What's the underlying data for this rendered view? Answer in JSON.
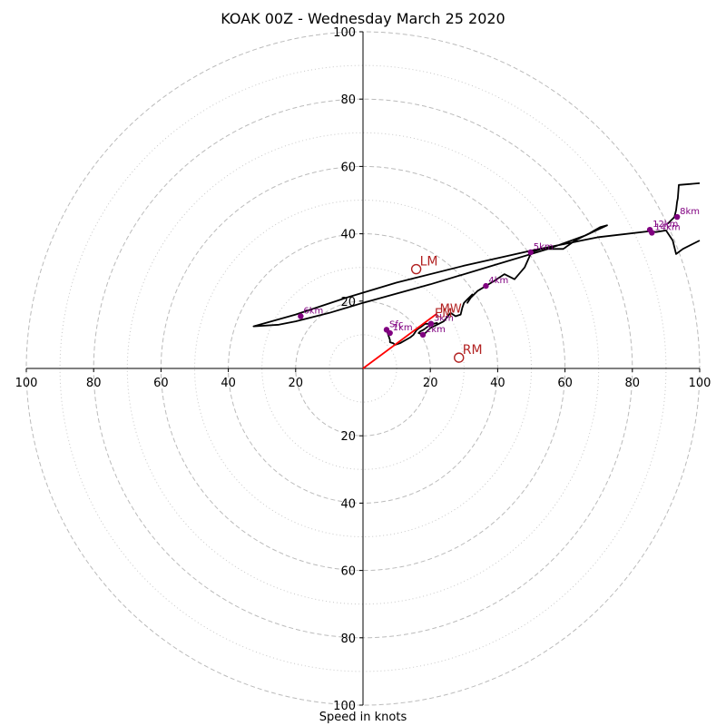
{
  "chart_data": {
    "type": "scatter",
    "subtype": "hodograph",
    "title": "KOAK 00Z - Wednesday March 25 2020",
    "xlabel": "Speed in knots",
    "ylabel": "",
    "xlim": [
      -100,
      100
    ],
    "ylim": [
      -100,
      100
    ],
    "x_tick_labels": [
      "100",
      "80",
      "60",
      "40",
      "20",
      "20",
      "40",
      "60",
      "80",
      "100"
    ],
    "y_tick_labels": [
      "100",
      "80",
      "60",
      "40",
      "20",
      "20",
      "40",
      "60",
      "80",
      "100"
    ],
    "ring_radii_major": [
      20,
      40,
      60,
      80,
      100
    ],
    "ring_radii_minor": [
      10,
      30,
      50,
      70,
      90
    ],
    "grid": true,
    "hodograph_line": {
      "color": "#000000",
      "points": [
        [
          7.2,
          10.8
        ],
        [
          8,
          8.5
        ],
        [
          8,
          7.8
        ],
        [
          9,
          7.5
        ],
        [
          9.5,
          7.0
        ],
        [
          11,
          7.5
        ],
        [
          14,
          9.2
        ],
        [
          15,
          10
        ],
        [
          16,
          11.5
        ],
        [
          17.5,
          12.5
        ],
        [
          18.5,
          13.3
        ],
        [
          20.5,
          13.2
        ],
        [
          22,
          13.5
        ],
        [
          20,
          13
        ],
        [
          18,
          11.5
        ],
        [
          17,
          11
        ],
        [
          16.5,
          10.5
        ],
        [
          18,
          10
        ],
        [
          20,
          12
        ],
        [
          22,
          13
        ],
        [
          24,
          14
        ],
        [
          26,
          16.5
        ],
        [
          27.5,
          15.5
        ],
        [
          29,
          16
        ],
        [
          29.5,
          18
        ],
        [
          30,
          19.5
        ],
        [
          31,
          20.5
        ],
        [
          32.5,
          22
        ],
        [
          31,
          19.5
        ],
        [
          32,
          21
        ],
        [
          34,
          23
        ],
        [
          36.5,
          24.5
        ],
        [
          39,
          26
        ],
        [
          42,
          28
        ],
        [
          45,
          26.5
        ],
        [
          48,
          30
        ],
        [
          50,
          34.5
        ],
        [
          53,
          35.5
        ],
        [
          56,
          35.5
        ],
        [
          59.5,
          35.5
        ],
        [
          63,
          38
        ],
        [
          67,
          40
        ],
        [
          70.5,
          42
        ],
        [
          72.5,
          42.5
        ],
        [
          66,
          39.5
        ],
        [
          55,
          35.5
        ],
        [
          40,
          31
        ],
        [
          20,
          25
        ],
        [
          0,
          19.5
        ],
        [
          -10,
          16.5
        ],
        [
          -20,
          14
        ],
        [
          -25,
          13
        ],
        [
          -32.5,
          12.5
        ],
        [
          -20,
          16
        ],
        [
          -5,
          21
        ],
        [
          10,
          25.5
        ],
        [
          30,
          30.5
        ],
        [
          50,
          35
        ],
        [
          70,
          39
        ],
        [
          85.5,
          40.8
        ],
        [
          87,
          40.5
        ],
        [
          90,
          41
        ],
        [
          92,
          38
        ],
        [
          93,
          34
        ],
        [
          95,
          35.5
        ],
        [
          100,
          38
        ]
      ]
    },
    "upper_segment": {
      "points": [
        [
          90.5,
          43
        ],
        [
          92.5,
          45
        ],
        [
          93,
          47
        ],
        [
          93.3,
          49.5
        ],
        [
          93.5,
          50.5
        ],
        [
          93.8,
          54.5
        ],
        [
          100,
          55
        ]
      ]
    },
    "height_markers": {
      "color": "#800080",
      "points": [
        {
          "label": "Sfc",
          "x": 7.0,
          "y": 11.5
        },
        {
          "label": "1km",
          "x": 8.0,
          "y": 10.5
        },
        {
          "label": "2km",
          "x": 17.8,
          "y": 10.0
        },
        {
          "label": "3km",
          "x": 20.2,
          "y": 13.3
        },
        {
          "label": "4km",
          "x": 36.5,
          "y": 24.5
        },
        {
          "label": "5km",
          "x": 49.8,
          "y": 34.5
        },
        {
          "label": "6km",
          "x": -18.5,
          "y": 15.5
        },
        {
          "label": "8km",
          "x": 93.3,
          "y": 45.0
        },
        {
          "label": "12km",
          "x": 85.2,
          "y": 41.2
        },
        {
          "label": "14km",
          "x": 85.8,
          "y": 40.3
        }
      ]
    },
    "storm_motion": {
      "color": "#b22222",
      "points": [
        {
          "label": "LM",
          "x": 15.8,
          "y": 29.5
        },
        {
          "label": "RM",
          "x": 28.5,
          "y": 3.2
        },
        {
          "label": "MW",
          "x": 22.0,
          "y": 16.3
        },
        {
          "label": "EM",
          "x": 20.5,
          "y": 15.0
        }
      ],
      "vector_to": [
        22.0,
        16.3
      ]
    }
  }
}
